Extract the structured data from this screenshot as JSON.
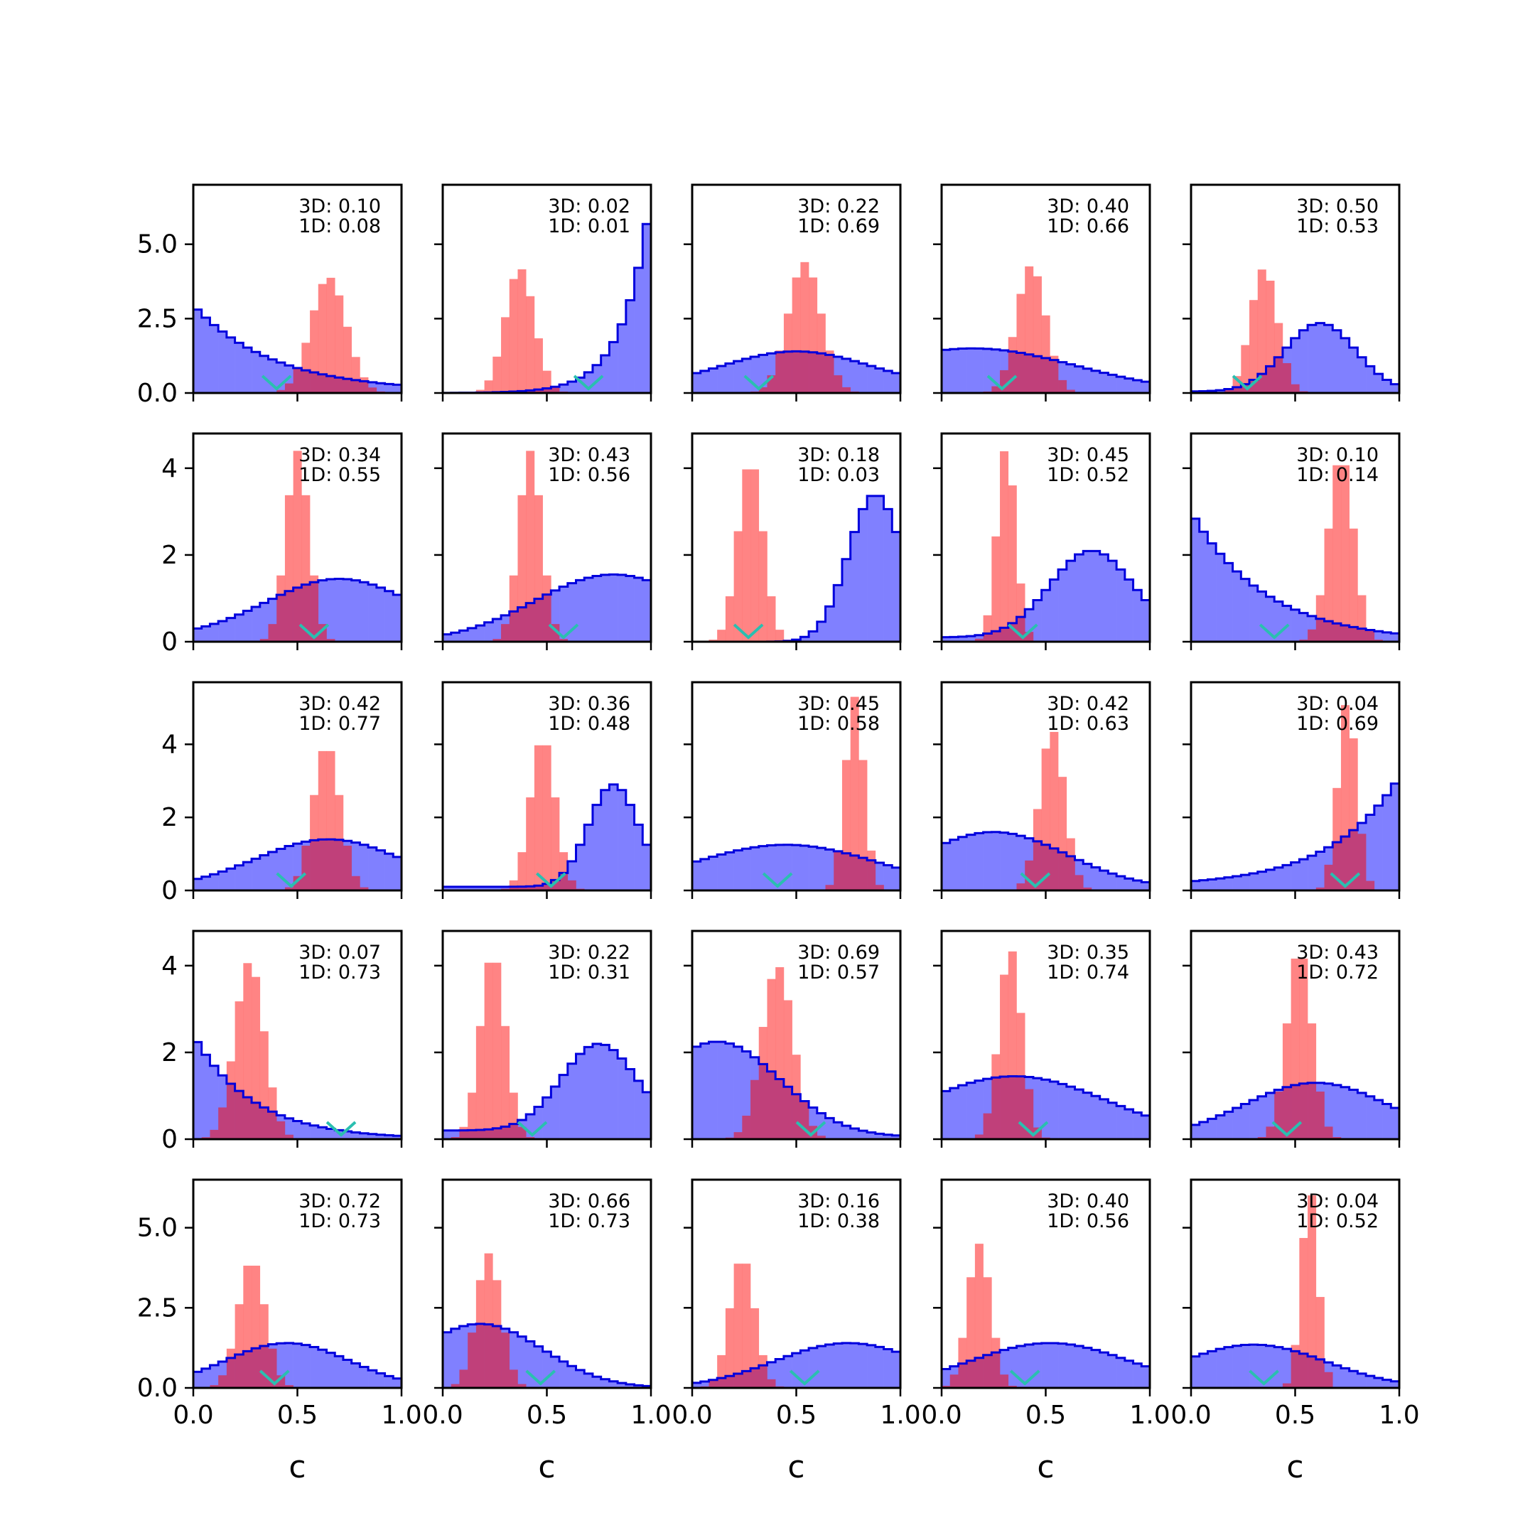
{
  "chart_data": {
    "type": "histogram-grid",
    "rows": 5,
    "cols": 5,
    "xlim": [
      0,
      1
    ],
    "x_ticks": [
      "0.0",
      "0.5",
      "1.0"
    ],
    "xlabel": "c",
    "row_ylims": [
      [
        0,
        7
      ],
      [
        0,
        4.8
      ],
      [
        0,
        5.7
      ],
      [
        0,
        4.8
      ],
      [
        0,
        6.5
      ]
    ],
    "row_yticks": [
      [
        "0.0",
        "2.5",
        "5.0"
      ],
      [
        "0",
        "2",
        "4"
      ],
      [
        "0",
        "2",
        "4"
      ],
      [
        "0",
        "2",
        "4"
      ],
      [
        "0.0",
        "2.5",
        "5.0"
      ]
    ],
    "colors": {
      "blue_fill": "#8080ff",
      "blue_edge": "#0000dd",
      "red_fill": "#ff6f6f",
      "overlap": "#c0407a",
      "marker": "#2abfb0"
    },
    "panels": [
      {
        "label_3d": "3D: 0.10",
        "label_1d": "1D: 0.08",
        "blue": {
          "type": "decay",
          "a": 2.9,
          "k": 2.6,
          "c": 0.05
        },
        "red": {
          "mu": 0.65,
          "sigma": 0.085,
          "peak": 3.9
        },
        "marker": 0.4
      },
      {
        "label_3d": "3D: 0.02",
        "label_1d": "1D: 0.01",
        "blue": {
          "type": "grow",
          "a": 6.6,
          "k": 7.5,
          "c": 0.0
        },
        "red": {
          "mu": 0.37,
          "sigma": 0.07,
          "peak": 4.2
        },
        "marker": 0.7
      },
      {
        "label_3d": "3D: 0.22",
        "label_1d": "1D: 0.69",
        "blue": {
          "type": "hump",
          "mu": 0.5,
          "sigma": 0.35,
          "peak": 1.2,
          "c": 0.2
        },
        "red": {
          "mu": 0.54,
          "sigma": 0.08,
          "peak": 4.4
        },
        "marker": 0.32
      },
      {
        "label_3d": "3D: 0.40",
        "label_1d": "1D: 0.66",
        "blue": {
          "type": "hump",
          "mu": 0.15,
          "sigma": 0.5,
          "peak": 1.5,
          "c": 0.0
        },
        "red": {
          "mu": 0.43,
          "sigma": 0.07,
          "peak": 4.3
        },
        "marker": 0.29
      },
      {
        "label_3d": "3D: 0.50",
        "label_1d": "1D: 0.53",
        "blue": {
          "type": "hump",
          "mu": 0.62,
          "sigma": 0.17,
          "peak": 2.3,
          "c": 0.05
        },
        "red": {
          "mu": 0.35,
          "sigma": 0.065,
          "peak": 4.2
        },
        "marker": 0.27
      },
      {
        "label_3d": "3D: 0.34",
        "label_1d": "1D: 0.55",
        "blue": {
          "type": "hump",
          "mu": 0.7,
          "sigma": 0.35,
          "peak": 1.35,
          "c": 0.1
        },
        "red": {
          "mu": 0.5,
          "sigma": 0.055,
          "peak": 4.4
        },
        "marker": 0.58
      },
      {
        "label_3d": "3D: 0.43",
        "label_1d": "1D: 0.56",
        "blue": {
          "type": "hump",
          "mu": 0.82,
          "sigma": 0.38,
          "peak": 1.55,
          "c": 0.0
        },
        "red": {
          "mu": 0.42,
          "sigma": 0.055,
          "peak": 4.4
        },
        "marker": 0.58
      },
      {
        "label_3d": "3D: 0.18",
        "label_1d": "1D: 0.03",
        "blue": {
          "type": "hump",
          "mu": 0.88,
          "sigma": 0.13,
          "peak": 3.4,
          "c": 0.0
        },
        "red": {
          "mu": 0.28,
          "sigma": 0.06,
          "peak": 4.2
        },
        "marker": 0.27
      },
      {
        "label_3d": "3D: 0.45",
        "label_1d": "1D: 0.52",
        "blue": {
          "type": "hump",
          "mu": 0.72,
          "sigma": 0.2,
          "peak": 2.0,
          "c": 0.1
        },
        "red": {
          "mu": 0.31,
          "sigma": 0.045,
          "peak": 4.5
        },
        "marker": 0.39
      },
      {
        "label_3d": "3D: 0.10",
        "label_1d": "1D: 0.14",
        "blue": {
          "type": "decay",
          "a": 3.0,
          "k": 2.8,
          "c": 0.0
        },
        "red": {
          "mu": 0.72,
          "sigma": 0.06,
          "peak": 4.3
        },
        "marker": 0.4
      },
      {
        "label_3d": "3D: 0.42",
        "label_1d": "1D: 0.77",
        "blue": {
          "type": "hump",
          "mu": 0.65,
          "sigma": 0.35,
          "peak": 1.35,
          "c": 0.05
        },
        "red": {
          "mu": 0.64,
          "sigma": 0.065,
          "peak": 4.0
        },
        "marker": 0.47
      },
      {
        "label_3d": "3D: 0.36",
        "label_1d": "1D: 0.48",
        "blue": {
          "type": "hump",
          "mu": 0.82,
          "sigma": 0.12,
          "peak": 2.8,
          "c": 0.1
        },
        "red": {
          "mu": 0.48,
          "sigma": 0.06,
          "peak": 4.2
        },
        "marker": 0.52
      },
      {
        "label_3d": "3D: 0.45",
        "label_1d": "1D: 0.58",
        "blue": {
          "type": "hump",
          "mu": 0.45,
          "sigma": 0.45,
          "peak": 1.25,
          "c": 0.0
        },
        "red": {
          "mu": 0.78,
          "sigma": 0.045,
          "peak": 5.3
        },
        "marker": 0.41
      },
      {
        "label_3d": "3D: 0.42",
        "label_1d": "1D: 0.63",
        "blue": {
          "type": "hump",
          "mu": 0.25,
          "sigma": 0.35,
          "peak": 1.55,
          "c": 0.05
        },
        "red": {
          "mu": 0.53,
          "sigma": 0.06,
          "peak": 4.4
        },
        "marker": 0.45
      },
      {
        "label_3d": "3D: 0.04",
        "label_1d": "1D: 0.69",
        "blue": {
          "type": "grow",
          "a": 3.0,
          "k": 3.0,
          "c": 0.1
        },
        "red": {
          "mu": 0.75,
          "sigma": 0.045,
          "peak": 5.2
        },
        "marker": 0.74
      },
      {
        "label_3d": "3D: 0.07",
        "label_1d": "1D: 0.73",
        "blue": {
          "type": "decay",
          "a": 2.4,
          "k": 3.5,
          "c": 0.0
        },
        "red": {
          "mu": 0.27,
          "sigma": 0.07,
          "peak": 4.1
        },
        "marker": 0.71
      },
      {
        "label_3d": "3D: 0.22",
        "label_1d": "1D: 0.31",
        "blue": {
          "type": "hump",
          "mu": 0.75,
          "sigma": 0.18,
          "peak": 2.0,
          "c": 0.2
        },
        "red": {
          "mu": 0.24,
          "sigma": 0.06,
          "peak": 4.3
        },
        "marker": 0.43
      },
      {
        "label_3d": "3D: 0.69",
        "label_1d": "1D: 0.57",
        "blue": {
          "type": "hump",
          "mu": 0.12,
          "sigma": 0.3,
          "peak": 2.2,
          "c": 0.05
        },
        "red": {
          "mu": 0.41,
          "sigma": 0.075,
          "peak": 4.0
        },
        "marker": 0.57
      },
      {
        "label_3d": "3D: 0.35",
        "label_1d": "1D: 0.74",
        "blue": {
          "type": "hump",
          "mu": 0.35,
          "sigma": 0.45,
          "peak": 1.45,
          "c": 0.0
        },
        "red": {
          "mu": 0.33,
          "sigma": 0.055,
          "peak": 4.4
        },
        "marker": 0.44
      },
      {
        "label_3d": "3D: 0.43",
        "label_1d": "1D: 0.72",
        "blue": {
          "type": "hump",
          "mu": 0.6,
          "sigma": 0.35,
          "peak": 1.3,
          "c": 0.0
        },
        "red": {
          "mu": 0.52,
          "sigma": 0.06,
          "peak": 4.4
        },
        "marker": 0.46
      },
      {
        "label_3d": "3D: 0.72",
        "label_1d": "1D: 0.73",
        "blue": {
          "type": "hump",
          "mu": 0.45,
          "sigma": 0.3,
          "peak": 1.4,
          "c": 0.0
        },
        "red": {
          "mu": 0.28,
          "sigma": 0.065,
          "peak": 4.0
        },
        "marker": 0.39
      },
      {
        "label_3d": "3D: 0.66",
        "label_1d": "1D: 0.73",
        "blue": {
          "type": "hump",
          "mu": 0.18,
          "sigma": 0.3,
          "peak": 2.0,
          "c": 0.0
        },
        "red": {
          "mu": 0.22,
          "sigma": 0.06,
          "peak": 4.2
        },
        "marker": 0.47
      },
      {
        "label_3d": "3D: 0.16",
        "label_1d": "1D: 0.38",
        "blue": {
          "type": "hump",
          "mu": 0.75,
          "sigma": 0.35,
          "peak": 1.4,
          "c": 0.0
        },
        "red": {
          "mu": 0.24,
          "sigma": 0.06,
          "peak": 4.1
        },
        "marker": 0.54
      },
      {
        "label_3d": "3D: 0.40",
        "label_1d": "1D: 0.56",
        "blue": {
          "type": "hump",
          "mu": 0.52,
          "sigma": 0.38,
          "peak": 1.4,
          "c": 0.0
        },
        "red": {
          "mu": 0.18,
          "sigma": 0.055,
          "peak": 4.5
        },
        "marker": 0.4
      },
      {
        "label_3d": "3D: 0.04",
        "label_1d": "1D: 0.52",
        "blue": {
          "type": "hump",
          "mu": 0.3,
          "sigma": 0.35,
          "peak": 1.35,
          "c": 0.0
        },
        "red": {
          "mu": 0.57,
          "sigma": 0.04,
          "peak": 6.2
        },
        "marker": 0.35
      }
    ]
  }
}
